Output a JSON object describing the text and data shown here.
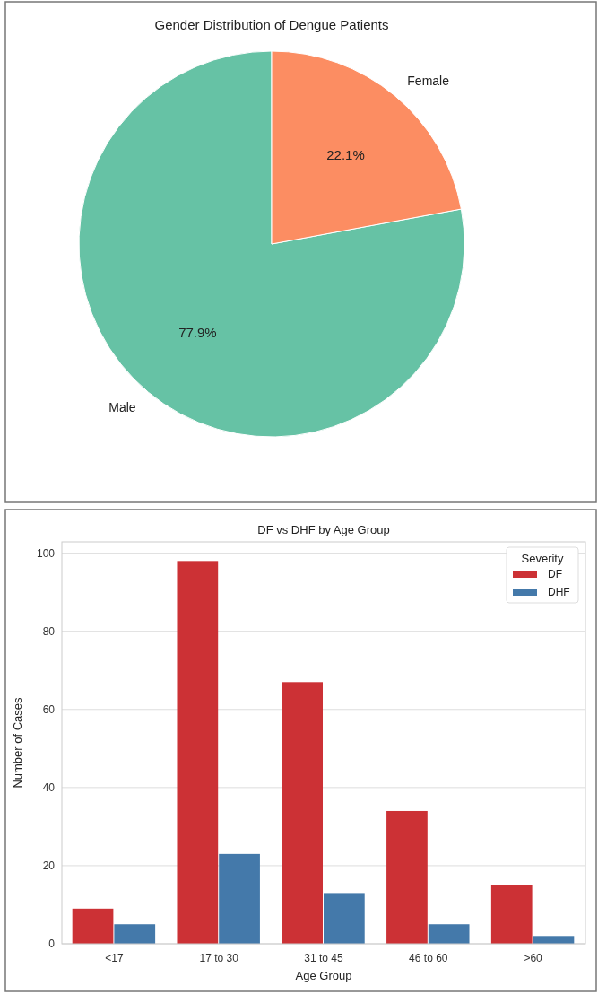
{
  "chart_data": [
    {
      "type": "pie",
      "title": "Gender Distribution of Dengue Patients",
      "categories": [
        "Male",
        "Female"
      ],
      "values": [
        77.9,
        22.1
      ],
      "colors": [
        "#66c2a5",
        "#fc8d62"
      ],
      "value_labels": [
        "77.9%",
        "22.1%"
      ]
    },
    {
      "type": "bar",
      "title": "DF vs DHF by Age Group",
      "xlabel": "Age Group",
      "ylabel": "Number of Cases",
      "legend_title": "Severity",
      "legend": "top right",
      "grid": "y",
      "categories": [
        "<17",
        "17 to 30",
        "31 to 45",
        "46 to 60",
        ">60"
      ],
      "ylim": [
        0,
        102.9
      ],
      "yticks": [
        0,
        20,
        40,
        60,
        80,
        100
      ],
      "series": [
        {
          "name": "DF",
          "color": "#cc3135",
          "values": [
            9,
            98,
            67,
            34,
            15
          ]
        },
        {
          "name": "DHF",
          "color": "#4479aa",
          "values": [
            5,
            23,
            13,
            5,
            2
          ]
        }
      ]
    }
  ]
}
